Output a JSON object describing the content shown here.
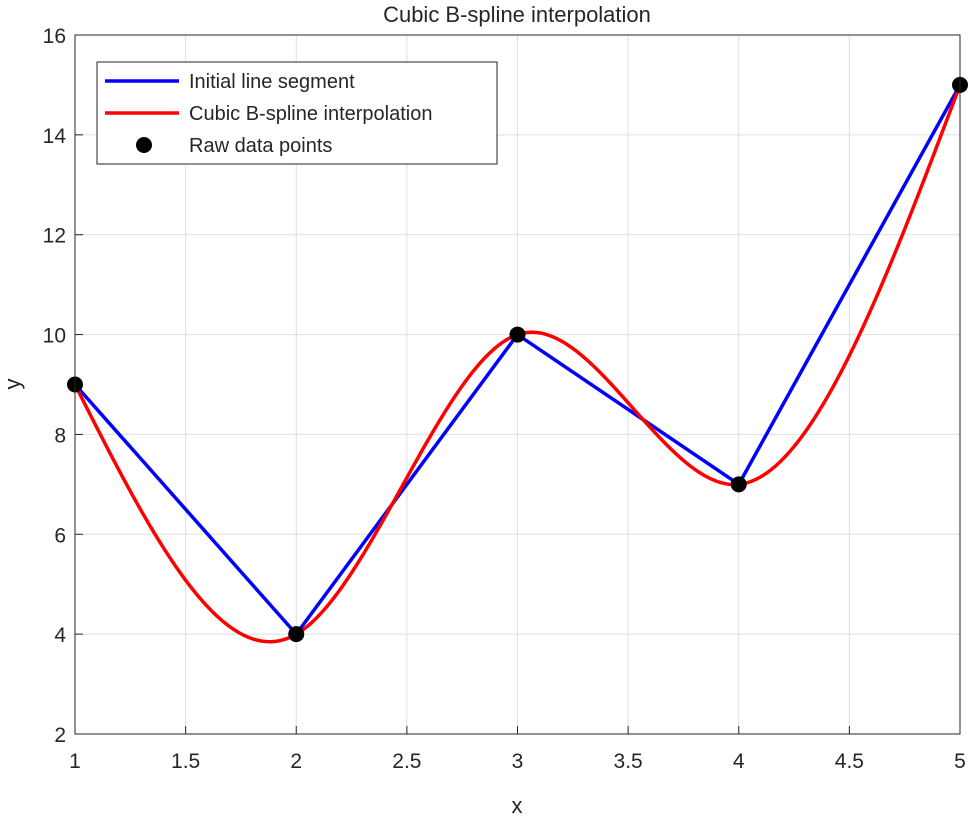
{
  "chart_data": {
    "type": "line",
    "title": "Cubic B-spline interpolation",
    "xlabel": "x",
    "ylabel": "y",
    "xlim": [
      1,
      5
    ],
    "ylim": [
      2,
      16
    ],
    "xticks": [
      1,
      1.5,
      2,
      2.5,
      3,
      3.5,
      4,
      4.5,
      5
    ],
    "xtick_labels": [
      "1",
      "1.5",
      "2",
      "2.5",
      "3",
      "3.5",
      "4",
      "4.5",
      "5"
    ],
    "yticks": [
      2,
      4,
      6,
      8,
      10,
      12,
      14,
      16
    ],
    "ytick_labels": [
      "2",
      "4",
      "6",
      "8",
      "10",
      "12",
      "14",
      "16"
    ],
    "grid": true,
    "legend_position": "top-left",
    "series": [
      {
        "name": "Initial line segment",
        "style": "line",
        "color": "#0000ff",
        "x": [
          1,
          2,
          3,
          4,
          5
        ],
        "y": [
          9,
          4,
          10,
          7,
          15
        ]
      },
      {
        "name": "Cubic B-spline interpolation",
        "style": "spline",
        "color": "#ff0000",
        "x": [
          1,
          2,
          3,
          4,
          5
        ],
        "y": [
          9,
          4,
          10,
          7,
          15
        ]
      },
      {
        "name": "Raw data points",
        "style": "markers",
        "color": "#000000",
        "x": [
          1,
          2,
          3,
          4,
          5
        ],
        "y": [
          9,
          4,
          10,
          7,
          15
        ]
      }
    ]
  }
}
